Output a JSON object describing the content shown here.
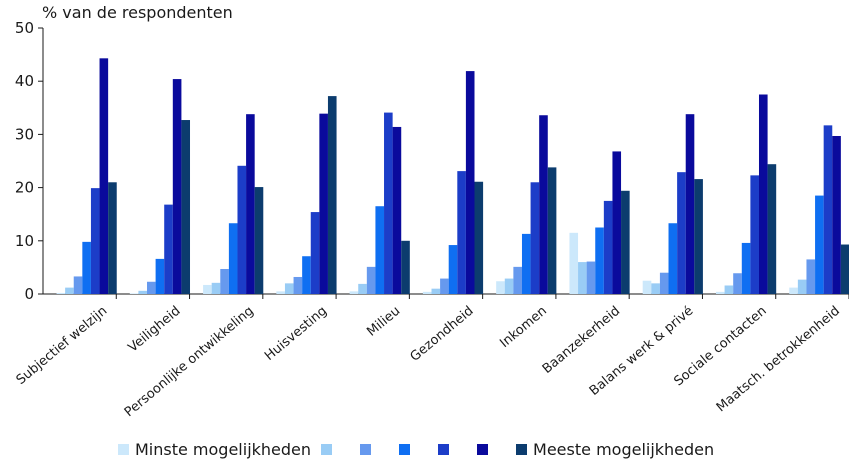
{
  "chart_data": {
    "type": "bar",
    "ylabel": "% van de respondenten",
    "ylim": [
      0,
      50
    ],
    "yticks": [
      0,
      10,
      20,
      30,
      40,
      50
    ],
    "categories": [
      "Subjectief welzijn",
      "Veiligheid",
      "Persoonlijke ontwikkeling",
      "Huisvesting",
      "Milieu",
      "Gezondheid",
      "Inkomen",
      "Baanzekerheid",
      "Balans werk & privé",
      "Sociale contacten",
      "Maatsch. betrokkenheid"
    ],
    "series": [
      {
        "name": "Minste mogelijkheden",
        "color": "#cce8fb",
        "values": [
          0.2,
          0.1,
          1.7,
          0.5,
          0.5,
          0.4,
          2.4,
          11.5,
          2.5,
          0.4,
          1.2
        ]
      },
      {
        "name": "",
        "color": "#99ccf5",
        "values": [
          1.2,
          0.6,
          2.1,
          2.0,
          1.9,
          1.0,
          2.9,
          6.0,
          2.0,
          1.6,
          2.7
        ]
      },
      {
        "name": "",
        "color": "#6699ee",
        "values": [
          3.3,
          2.3,
          4.7,
          3.2,
          5.1,
          2.9,
          5.1,
          6.1,
          4.0,
          3.9,
          6.5
        ]
      },
      {
        "name": "",
        "color": "#0f6ff2",
        "values": [
          9.8,
          6.6,
          13.3,
          7.1,
          16.5,
          9.2,
          11.3,
          12.5,
          13.3,
          9.6,
          18.5
        ]
      },
      {
        "name": "",
        "color": "#1c3dc8",
        "values": [
          19.9,
          16.8,
          24.1,
          15.4,
          34.1,
          23.1,
          21.0,
          17.5,
          22.9,
          22.3,
          31.7
        ]
      },
      {
        "name": "",
        "color": "#0a0a9c",
        "values": [
          44.3,
          40.4,
          33.8,
          33.9,
          31.4,
          41.9,
          33.6,
          26.8,
          33.8,
          37.5,
          29.7
        ]
      },
      {
        "name": "Meeste mogelijkheden",
        "color": "#0c3c6e",
        "values": [
          21.0,
          32.7,
          20.1,
          37.2,
          10.0,
          21.1,
          23.8,
          19.4,
          21.6,
          24.4,
          9.3
        ]
      }
    ]
  },
  "legend": {
    "items": [
      {
        "label": "Minste mogelijkheden",
        "color": "#cce8fb"
      },
      {
        "label": "",
        "color": "#99ccf5"
      },
      {
        "label": "",
        "color": "#6699ee"
      },
      {
        "label": "",
        "color": "#0f6ff2"
      },
      {
        "label": "",
        "color": "#1c3dc8"
      },
      {
        "label": "",
        "color": "#0a0a9c"
      },
      {
        "label": "Meeste mogelijkheden",
        "color": "#0c3c6e"
      }
    ]
  }
}
